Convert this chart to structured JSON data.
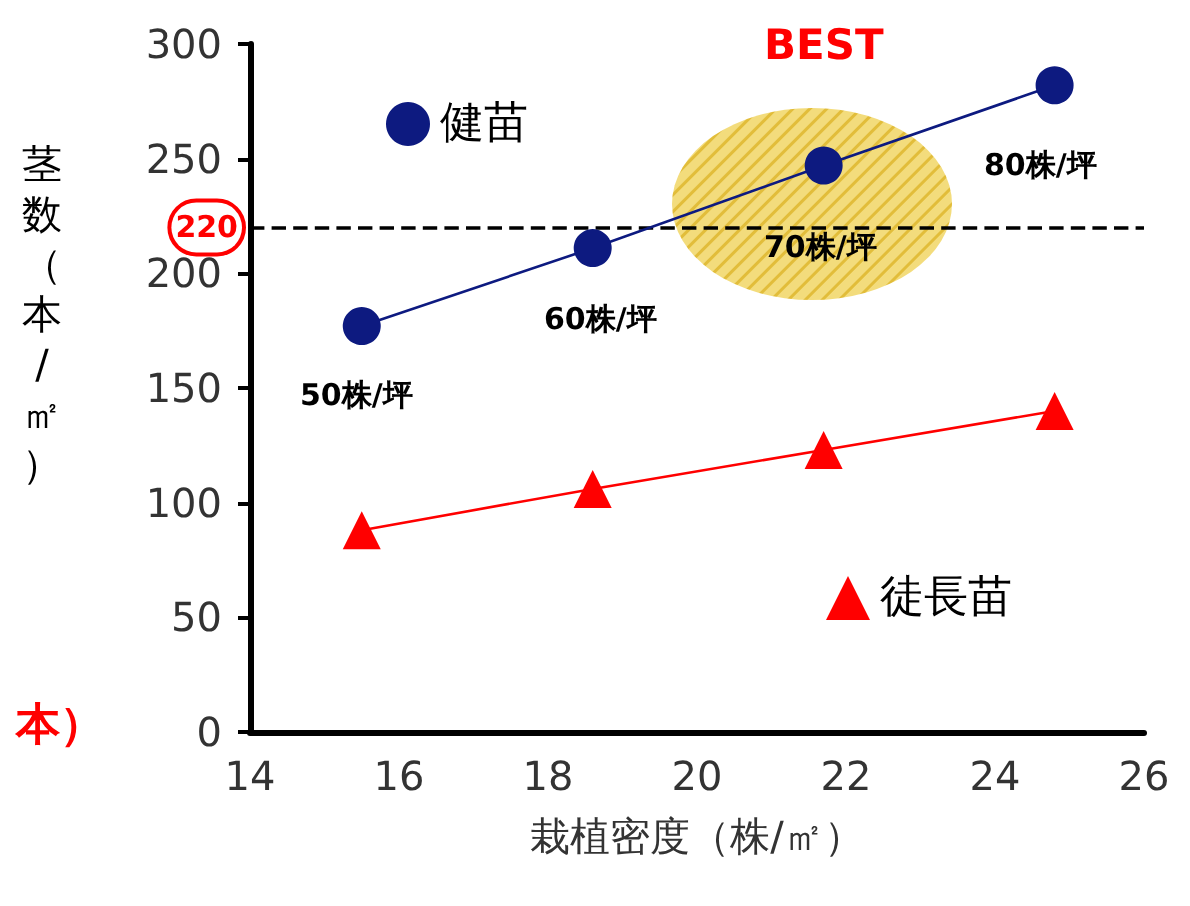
{
  "chart_data": {
    "type": "line",
    "xlabel": "栽植密度（株/㎡）",
    "ylabel": "茎数（本/㎡）",
    "x": [
      15.5,
      18.6,
      21.7,
      24.8
    ],
    "series": [
      {
        "name": "健苗",
        "color": "#0d1a80",
        "marker": "circle",
        "values": [
          177,
          211,
          247,
          282
        ]
      },
      {
        "name": "徒長苗",
        "color": "#ff0000",
        "marker": "triangle",
        "values": [
          88,
          106,
          123,
          140
        ]
      }
    ],
    "xlim": [
      14,
      26
    ],
    "xticks": [
      14,
      16,
      18,
      20,
      22,
      24,
      26
    ],
    "ylim": [
      0,
      300
    ],
    "yticks": [
      0,
      50,
      100,
      150,
      200,
      250,
      300
    ],
    "grid": false,
    "legend": "top right",
    "line_style": "solid",
    "ref_lines": [
      {
        "axis": "y",
        "value": 220,
        "label": "220",
        "color": "#000000",
        "line_style": "dashed"
      }
    ],
    "annotations": [
      "50株/坪",
      "60株/坪",
      "70株/坪",
      "80株/坪",
      "BEST",
      "本）"
    ]
  }
}
